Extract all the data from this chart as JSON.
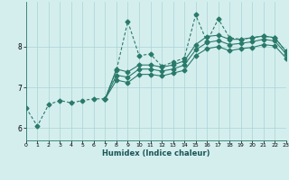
{
  "xlabel": "Humidex (Indice chaleur)",
  "bg_color": "#d4eeee",
  "line_color": "#2a7a6a",
  "grid_color": "#aad4d4",
  "xlim": [
    0,
    23
  ],
  "ylim": [
    5.7,
    9.1
  ],
  "yticks": [
    6,
    7,
    8
  ],
  "xticks": [
    0,
    1,
    2,
    3,
    4,
    5,
    6,
    7,
    8,
    9,
    10,
    11,
    12,
    13,
    14,
    15,
    16,
    17,
    18,
    19,
    20,
    21,
    22,
    23
  ],
  "line_main_x": [
    0,
    1,
    2,
    3,
    4,
    5,
    6,
    7,
    8,
    9,
    10,
    11,
    12,
    13,
    14,
    15,
    16,
    17,
    18,
    19,
    20,
    21,
    22,
    23
  ],
  "line_main_y": [
    6.5,
    6.05,
    6.58,
    6.68,
    6.62,
    6.68,
    6.72,
    6.72,
    7.42,
    8.62,
    7.78,
    7.82,
    7.52,
    7.62,
    7.72,
    8.78,
    8.12,
    8.68,
    8.22,
    8.18,
    8.22,
    8.26,
    8.22,
    7.88
  ],
  "line_top_x": [
    7,
    8,
    9,
    10,
    11,
    12,
    13,
    14,
    15,
    16,
    17,
    18,
    19,
    20,
    21,
    22,
    23
  ],
  "line_top_y": [
    6.72,
    7.45,
    7.38,
    7.55,
    7.55,
    7.5,
    7.55,
    7.65,
    8.05,
    8.25,
    8.28,
    8.18,
    8.18,
    8.22,
    8.26,
    8.22,
    7.88
  ],
  "line_mid_x": [
    7,
    8,
    9,
    10,
    11,
    12,
    13,
    14,
    15,
    16,
    17,
    18,
    19,
    20,
    21,
    22,
    23
  ],
  "line_mid_y": [
    6.72,
    7.3,
    7.25,
    7.45,
    7.45,
    7.4,
    7.45,
    7.55,
    7.92,
    8.1,
    8.15,
    8.05,
    8.08,
    8.12,
    8.18,
    8.14,
    7.82
  ],
  "line_bot_x": [
    7,
    8,
    9,
    10,
    11,
    12,
    13,
    14,
    15,
    16,
    17,
    18,
    19,
    20,
    21,
    22,
    23
  ],
  "line_bot_y": [
    6.72,
    7.18,
    7.12,
    7.32,
    7.32,
    7.28,
    7.35,
    7.42,
    7.78,
    7.95,
    8.0,
    7.9,
    7.95,
    7.98,
    8.05,
    8.02,
    7.72
  ]
}
